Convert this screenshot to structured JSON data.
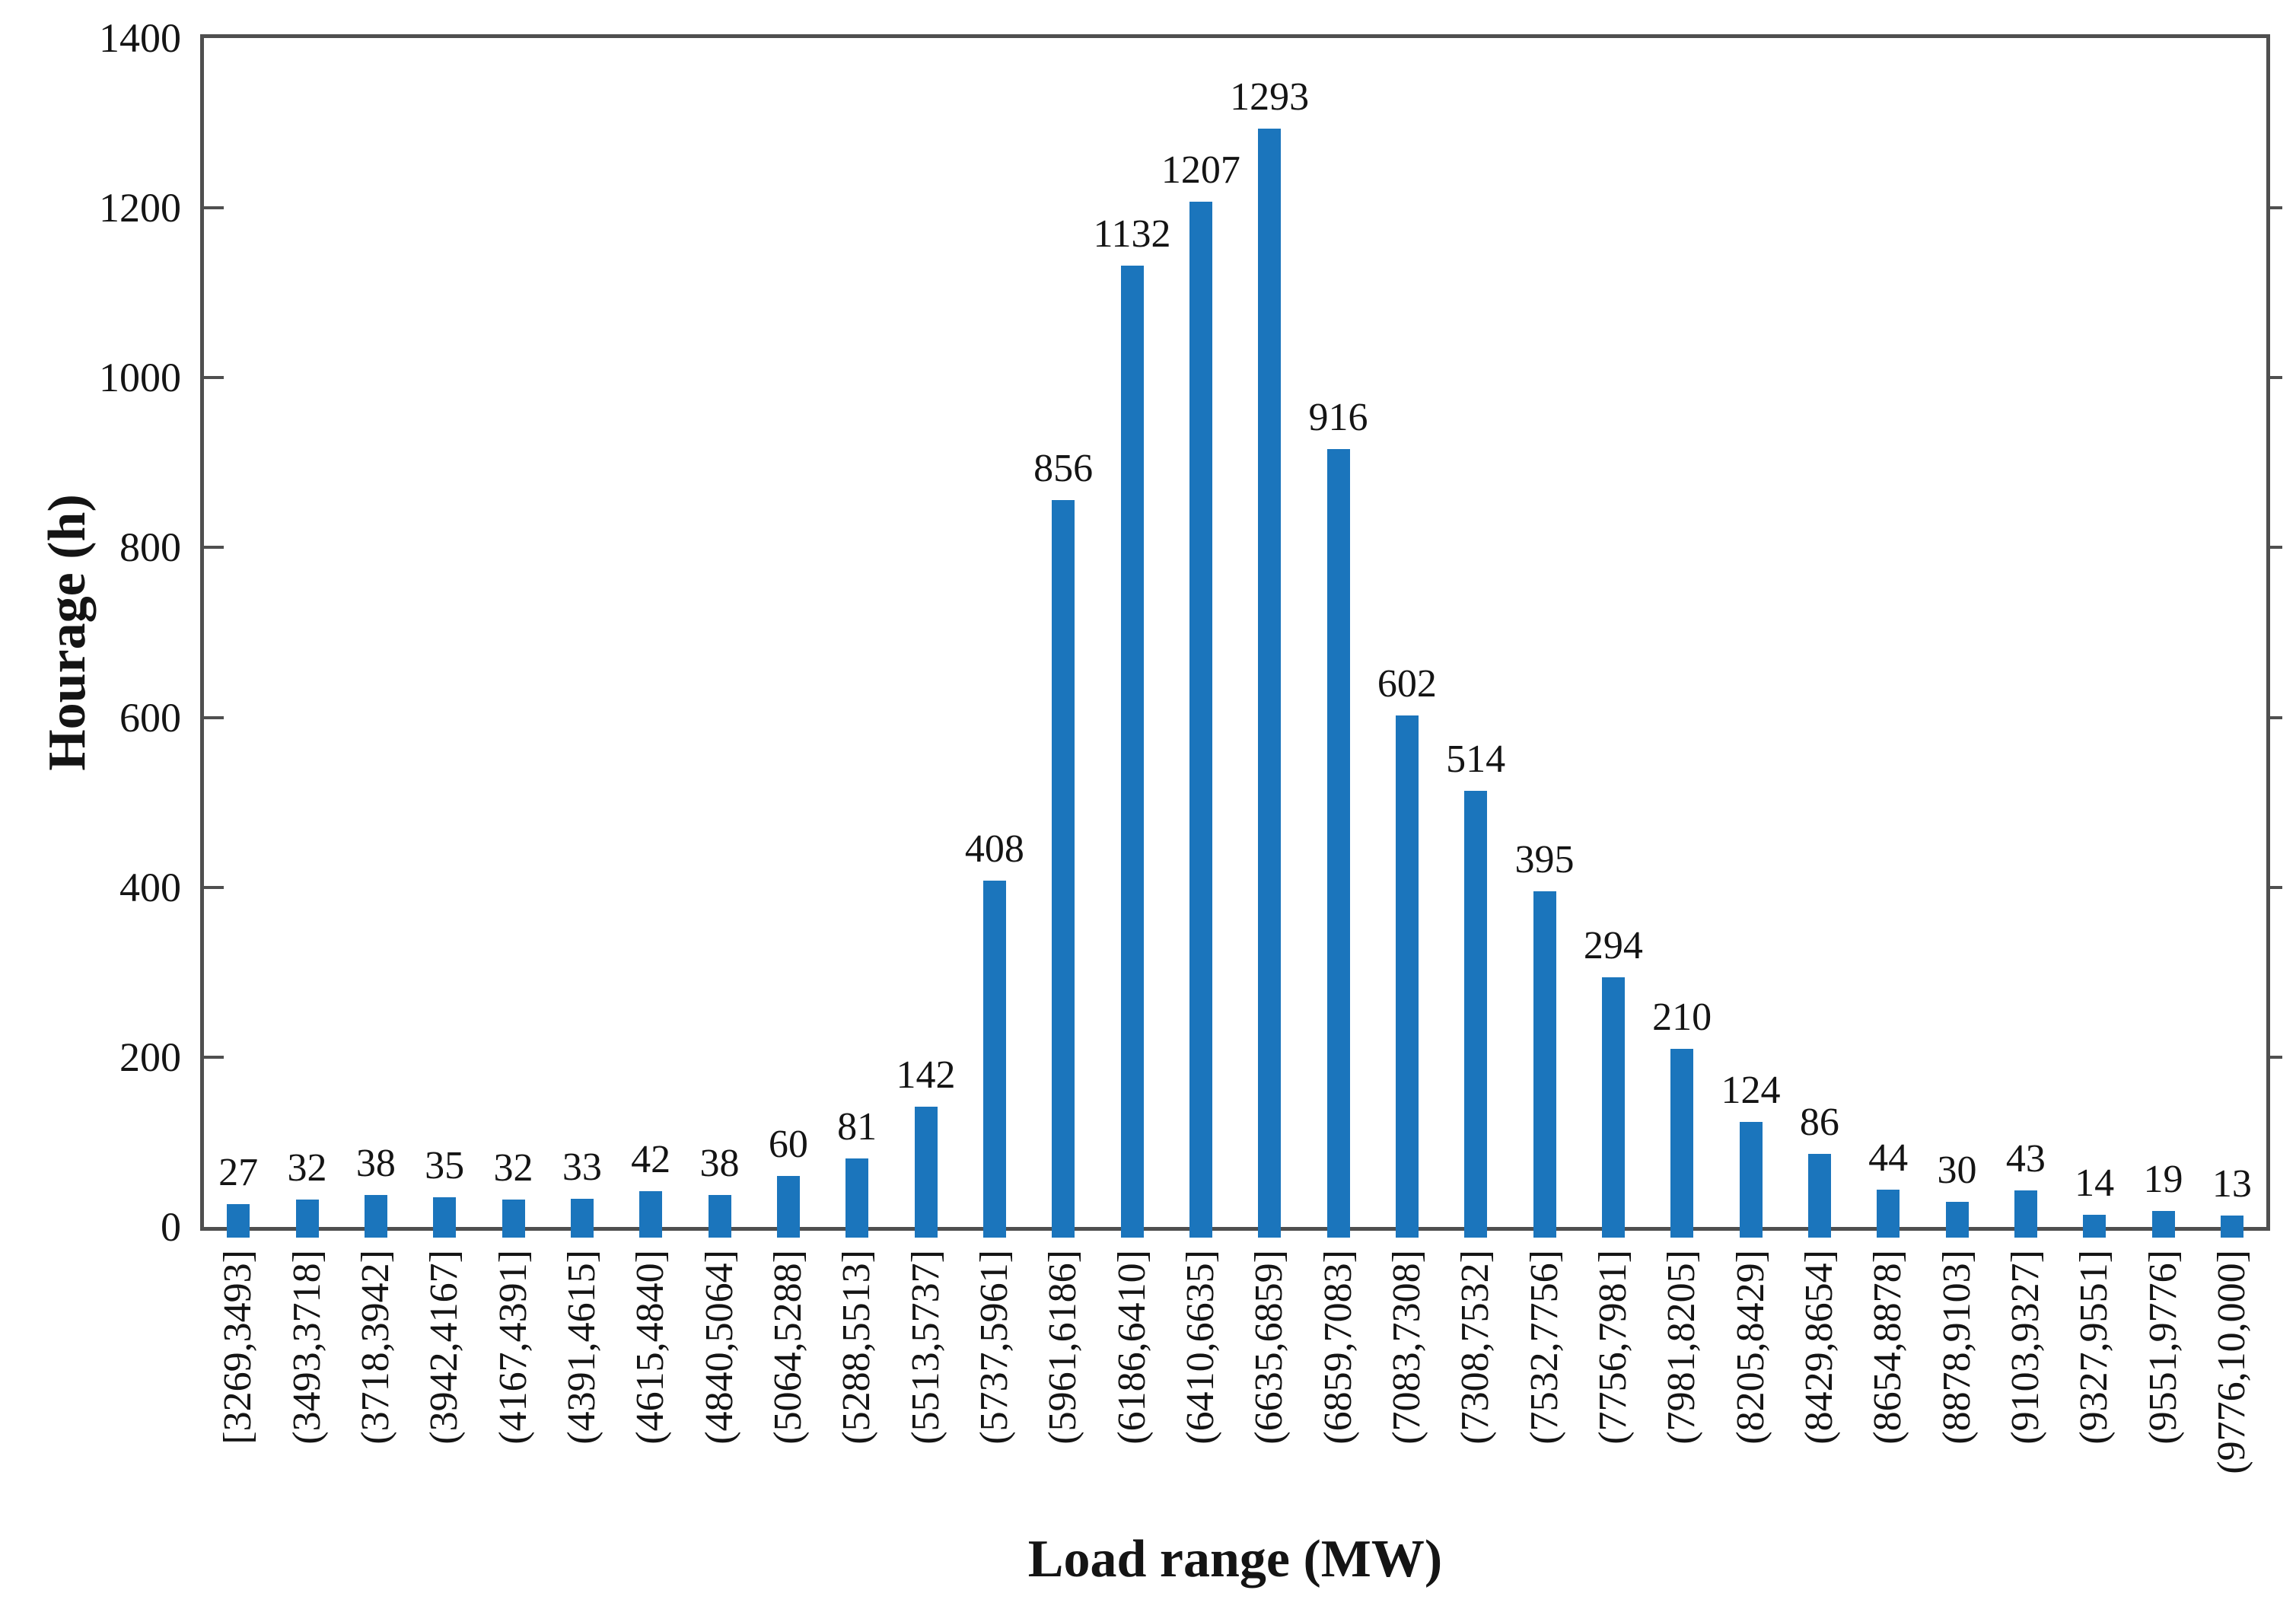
{
  "chart_data": {
    "type": "bar",
    "title": "",
    "xlabel": "Load range (MW)",
    "ylabel": "Hourage (h)",
    "categories": [
      "[3269,3493]",
      "(3493,3718]",
      "(3718,3942]",
      "(3942,4167]",
      "(4167,4391]",
      "(4391,4615]",
      "(4615,4840]",
      "(4840,5064]",
      "(5064,5288]",
      "(5288,5513]",
      "(5513,5737]",
      "(5737,5961]",
      "(5961,6186]",
      "(6186,6410]",
      "(6410,6635]",
      "(6635,6859]",
      "(6859,7083]",
      "(7083,7308]",
      "(7308,7532]",
      "(7532,7756]",
      "(7756,7981]",
      "(7981,8205]",
      "(8205,8429]",
      "(8429,8654]",
      "(8654,8878]",
      "(8878,9103]",
      "(9103,9327]",
      "(9327,9551]",
      "(9551,9776]",
      "(9776,10,000]"
    ],
    "values": [
      27,
      32,
      38,
      35,
      32,
      33,
      42,
      38,
      60,
      81,
      142,
      408,
      856,
      1132,
      1207,
      1293,
      916,
      602,
      514,
      395,
      294,
      210,
      124,
      86,
      44,
      30,
      43,
      14,
      19,
      13
    ],
    "ylim": [
      0,
      1400
    ],
    "yticks": [
      0,
      200,
      400,
      600,
      800,
      1000,
      1200,
      1400
    ],
    "grid": false,
    "legend": null,
    "value_labels_shown": true,
    "bar_color": "#1b75bc",
    "axis_color": "#4f4f4f",
    "text_color": "#141414"
  }
}
